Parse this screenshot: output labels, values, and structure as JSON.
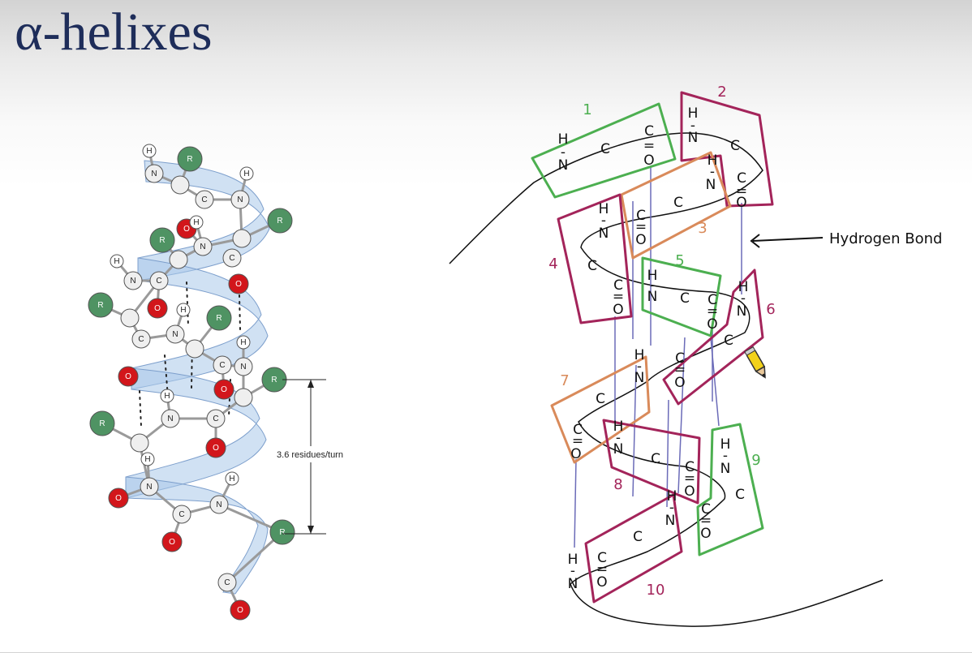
{
  "slide": {
    "title": "α-helixes"
  },
  "left_diagram": {
    "measure_label": "3.6 residues/turn",
    "atom_symbols": {
      "nitrogen": "N",
      "carbon": "C",
      "oxygen": "O",
      "hydrogen": "H",
      "sidechain": "R"
    },
    "colors": {
      "ribbon": "#a9c8ea",
      "oxygen": "#d2161b",
      "sidechain": "#4f9363",
      "carbon": "#efefef",
      "hydrogen": "#ffffff"
    }
  },
  "right_diagram": {
    "annotation": "Hydrogen Bond",
    "letters": {
      "h": "H",
      "n": "N",
      "c": "C",
      "o": "O",
      "bond_dash": "-",
      "bond_double": "="
    },
    "residues": [
      {
        "number": "1",
        "color": "#4caf50"
      },
      {
        "number": "2",
        "color": "#a3245a"
      },
      {
        "number": "3",
        "color": "#d98a5a"
      },
      {
        "number": "4",
        "color": "#a3245a"
      },
      {
        "number": "5",
        "color": "#4caf50"
      },
      {
        "number": "6",
        "color": "#a3245a"
      },
      {
        "number": "7",
        "color": "#d98a5a"
      },
      {
        "number": "8",
        "color": "#a3245a"
      },
      {
        "number": "9",
        "color": "#4caf50"
      },
      {
        "number": "10",
        "color": "#a3245a"
      }
    ],
    "hbond_color": "#6b6bb8",
    "icons": [
      "arrow-left-icon",
      "pencil-cursor-icon"
    ]
  }
}
